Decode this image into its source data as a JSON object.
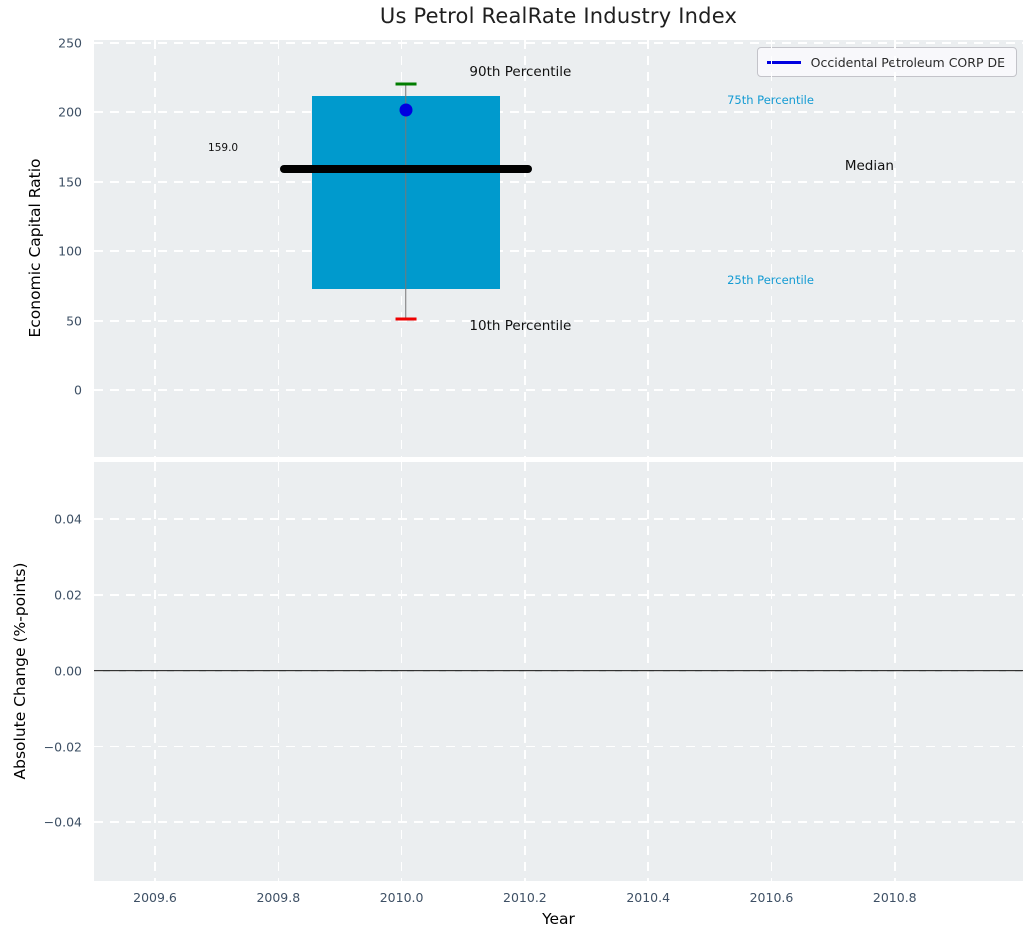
{
  "title": "Us Petrol RealRate Industry Index",
  "legend": {
    "label": "Occidental Petroleum CORP DE"
  },
  "colors": {
    "plot_bg": "#ebeef0",
    "grid": "#ffffff",
    "tick_label": "#3e5065",
    "box_fill": "#009acd",
    "median_line": "#000000",
    "whisker": "#777777",
    "cap_90": "#007d00",
    "cap_10": "#ee0000",
    "entity_dot": "#0000e0",
    "legend_line": "#0000e0",
    "percentile_label": "#149bd3",
    "zero_line": "#000000"
  },
  "chart_data": {
    "type": "boxplot",
    "title": "Us Petrol RealRate Industry Index",
    "xlabel": "Year",
    "xlim": [
      2009.501,
      2011.008
    ],
    "x_ticks": [
      2009.6,
      2009.8,
      2010.0,
      2010.2,
      2010.4,
      2010.6,
      2010.8
    ],
    "x_tick_labels": [
      "2009.6",
      "2009.8",
      "2010.0",
      "2010.2",
      "2010.4",
      "2010.6",
      "2010.8"
    ],
    "panels": [
      {
        "name": "industry_distribution",
        "ylabel": "Economic Capital Ratio",
        "ylim": [
          -48,
          252
        ],
        "y_ticks": [
          250,
          200,
          150,
          100,
          50,
          0
        ],
        "y_tick_labels": [
          "250",
          "200",
          "150",
          "100",
          "50",
          "0"
        ],
        "box": {
          "year": 2010.007,
          "p90": 220,
          "p75": 212,
          "median": 159,
          "p25": 73,
          "p10": 51,
          "median_annotation": "159.0",
          "entity_point": {
            "label": "Occidental Petroleum CORP DE",
            "year": 2010.007,
            "value": 202
          },
          "box_half_width_years": 0.152,
          "median_half_width_years": 0.205,
          "cap_half_width_years": 0.017
        },
        "annotations": [
          {
            "text": "90th Percentile",
            "year": 2010.11,
            "value": 229,
            "style": "black-lg"
          },
          {
            "text": "10th Percentile",
            "year": 2010.11,
            "value": 46,
            "style": "black-lg"
          },
          {
            "text": "Median",
            "year": 2010.719,
            "value": 161,
            "style": "black-lg"
          },
          {
            "text": "75th Percentile",
            "year": 2010.528,
            "value": 209,
            "style": "cyan-sm"
          },
          {
            "text": "25th Percentile",
            "year": 2010.528,
            "value": 79,
            "style": "cyan-sm"
          },
          {
            "text": "159.0",
            "year": 2009.686,
            "value": 174,
            "style": "black-xs"
          }
        ],
        "legend_position": "upper right"
      },
      {
        "name": "absolute_change",
        "ylabel": "Absolute Change (%-points)",
        "ylim": [
          -0.0555,
          0.0551
        ],
        "y_ticks": [
          0.04,
          0.02,
          0.0,
          -0.02,
          -0.04
        ],
        "y_tick_labels": [
          "0.04",
          "0.02",
          "0.00",
          "−0.02",
          "−0.04"
        ],
        "zero_line_value": 0.0,
        "series": []
      }
    ]
  }
}
